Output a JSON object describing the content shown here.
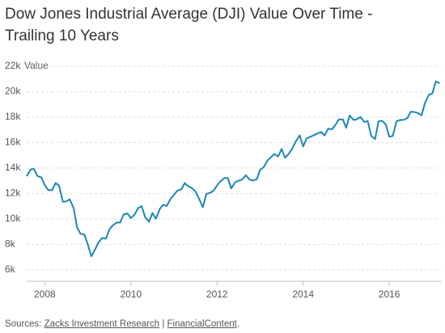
{
  "chart_data": {
    "type": "line",
    "title": [
      "Dow Jones Industrial Average (DJI) Value Over Time -",
      "Trailing 10 Years"
    ],
    "y_label": "Value",
    "x": [
      2007.58,
      2007.67,
      2007.75,
      2007.83,
      2007.92,
      2008.0,
      2008.08,
      2008.17,
      2008.25,
      2008.33,
      2008.42,
      2008.5,
      2008.58,
      2008.67,
      2008.75,
      2008.83,
      2008.92,
      2009.0,
      2009.08,
      2009.17,
      2009.25,
      2009.33,
      2009.42,
      2009.5,
      2009.58,
      2009.67,
      2009.75,
      2009.83,
      2009.92,
      2010.0,
      2010.08,
      2010.17,
      2010.25,
      2010.33,
      2010.42,
      2010.5,
      2010.58,
      2010.67,
      2010.75,
      2010.83,
      2010.92,
      2011.0,
      2011.08,
      2011.17,
      2011.25,
      2011.33,
      2011.42,
      2011.5,
      2011.58,
      2011.67,
      2011.75,
      2011.83,
      2011.92,
      2012.0,
      2012.08,
      2012.17,
      2012.25,
      2012.33,
      2012.42,
      2012.5,
      2012.58,
      2012.67,
      2012.75,
      2012.83,
      2012.92,
      2013.0,
      2013.08,
      2013.17,
      2013.25,
      2013.33,
      2013.42,
      2013.5,
      2013.58,
      2013.67,
      2013.75,
      2013.83,
      2013.92,
      2014.0,
      2014.08,
      2014.17,
      2014.25,
      2014.33,
      2014.42,
      2014.5,
      2014.58,
      2014.67,
      2014.75,
      2014.83,
      2014.92,
      2015.0,
      2015.08,
      2015.17,
      2015.25,
      2015.33,
      2015.42,
      2015.5,
      2015.58,
      2015.67,
      2015.75,
      2015.83,
      2015.92,
      2016.0,
      2016.08,
      2016.17,
      2016.25,
      2016.33,
      2016.42,
      2016.5,
      2016.58,
      2016.67,
      2016.75,
      2016.83,
      2016.92,
      2017.0,
      2017.08,
      2017.17
    ],
    "series": [
      {
        "name": "Value",
        "color": "#1a87b5",
        "values": [
          13358,
          13896,
          13930,
          13372,
          13265,
          12650,
          12266,
          12263,
          12820,
          12638,
          11350,
          11378,
          11544,
          10851,
          9325,
          8829,
          8776,
          8000,
          7063,
          7609,
          8168,
          8500,
          8447,
          9172,
          9496,
          9712,
          9713,
          10345,
          10428,
          10067,
          10325,
          10857,
          11009,
          10137,
          9774,
          10466,
          10015,
          10788,
          11118,
          11006,
          11578,
          11892,
          12226,
          12320,
          12811,
          12570,
          12414,
          12143,
          11614,
          10913,
          11955,
          12046,
          12218,
          12633,
          12952,
          13212,
          13214,
          12393,
          12880,
          13009,
          13091,
          13437,
          13096,
          13026,
          13104,
          13861,
          14054,
          14579,
          14840,
          15116,
          14910,
          15500,
          14810,
          15130,
          15546,
          16086,
          16577,
          15699,
          16322,
          16458,
          16581,
          16717,
          16827,
          16563,
          17098,
          17043,
          17391,
          17828,
          17823,
          17165,
          18133,
          17776,
          17841,
          18011,
          17620,
          17690,
          16528,
          16285,
          17664,
          17720,
          17425,
          16466,
          16517,
          17685,
          17774,
          17787,
          17930,
          18432,
          18401,
          18308,
          18142,
          19124,
          19763,
          19864,
          20812,
          20663
        ]
      }
    ],
    "xlim": [
      2007.58,
      2017.2
    ],
    "xticks": [
      2008,
      2010,
      2012,
      2014,
      2016
    ],
    "ylim": [
      5100,
      22000
    ],
    "yticks": [
      {
        "value": 6000,
        "label": "6k"
      },
      {
        "value": 8000,
        "label": "8k"
      },
      {
        "value": 10000,
        "label": "10k"
      },
      {
        "value": 12000,
        "label": "12k"
      },
      {
        "value": 14000,
        "label": "14k"
      },
      {
        "value": 16000,
        "label": "16k"
      },
      {
        "value": 18000,
        "label": "18k"
      },
      {
        "value": 20000,
        "label": "20k"
      },
      {
        "value": 22000,
        "label": "22k"
      }
    ],
    "grid": true,
    "source": {
      "label": "Sources:",
      "links": [
        "Zacks Investment Research",
        "FinancialContent"
      ],
      "separator": "|",
      "end": "."
    }
  }
}
